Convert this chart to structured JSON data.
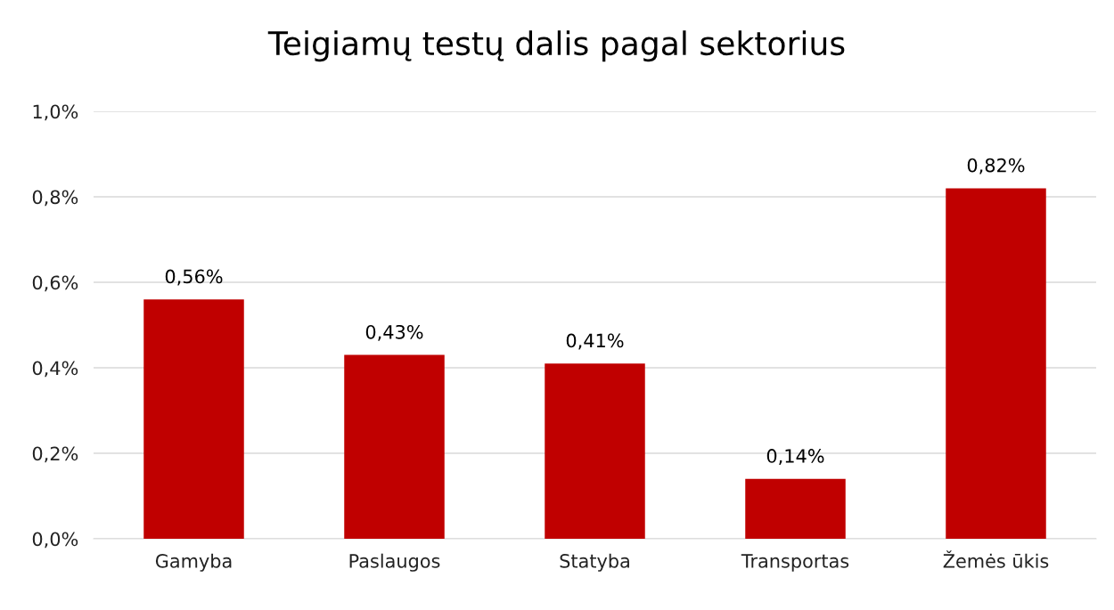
{
  "chart_data": {
    "type": "bar",
    "title": "Teigiamų testų dalis pagal sektorius",
    "categories": [
      "Gamyba",
      "Paslaugos",
      "Statyba",
      "Transportas",
      "Žemės ūkis"
    ],
    "values": [
      0.56,
      0.43,
      0.41,
      0.14,
      0.82
    ],
    "value_labels": [
      "0,56%",
      "0,43%",
      "0,41%",
      "0,14%",
      "0,82%"
    ],
    "color": "#c00000",
    "ylim": [
      0,
      1.0
    ],
    "yticks": [
      {
        "value": 0,
        "label": "0,0%"
      },
      {
        "value": 0.2,
        "label": "0,2%"
      },
      {
        "value": 0.4,
        "label": "0,4%"
      },
      {
        "value": 0.6,
        "label": "0,6%"
      },
      {
        "value": 0.8,
        "label": "0,8%"
      },
      {
        "value": 1.0,
        "label": "1,0%"
      }
    ],
    "grid": "y",
    "legend": false
  }
}
